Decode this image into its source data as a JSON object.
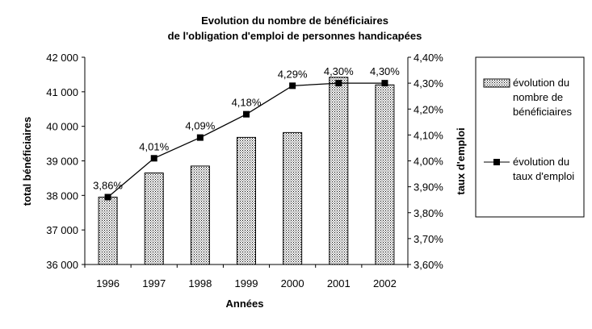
{
  "chart_data": {
    "type": "bar",
    "title_line1": "Evolution du nombre de bénéficiaires",
    "title_line2": "de l'obligation d'emploi de personnes handicapées",
    "xlabel": "Années",
    "ylabel": "total bénéficiaires",
    "y2label": "taux d'emploi",
    "categories": [
      "1996",
      "1997",
      "1998",
      "1999",
      "2000",
      "2001",
      "2002"
    ],
    "ylim": [
      36000,
      42000
    ],
    "y_ticks": [
      "36 000",
      "37 000",
      "38 000",
      "39 000",
      "40 000",
      "41 000",
      "42 000"
    ],
    "y2lim": [
      3.6,
      4.4
    ],
    "y2_ticks": [
      "3,60%",
      "3,70%",
      "3,80%",
      "3,90%",
      "4,00%",
      "4,10%",
      "4,20%",
      "4,30%",
      "4,40%"
    ],
    "grid": false,
    "legend_position": "right",
    "series": [
      {
        "name_line1": "évolution du",
        "name_line2": "nombre de",
        "name_line3": "bénéficiaires",
        "type": "bar",
        "axis": "left",
        "values": [
          37950,
          38650,
          38850,
          39680,
          39820,
          41420,
          41200
        ]
      },
      {
        "name_line1": "évolution du",
        "name_line2": "taux d'emploi",
        "type": "line",
        "axis": "right",
        "values": [
          3.86,
          4.01,
          4.09,
          4.18,
          4.29,
          4.3,
          4.3
        ],
        "labels": [
          "3,86%",
          "4,01%",
          "4,09%",
          "4,18%",
          "4,29%",
          "4,30%",
          "4,30%"
        ]
      }
    ]
  }
}
